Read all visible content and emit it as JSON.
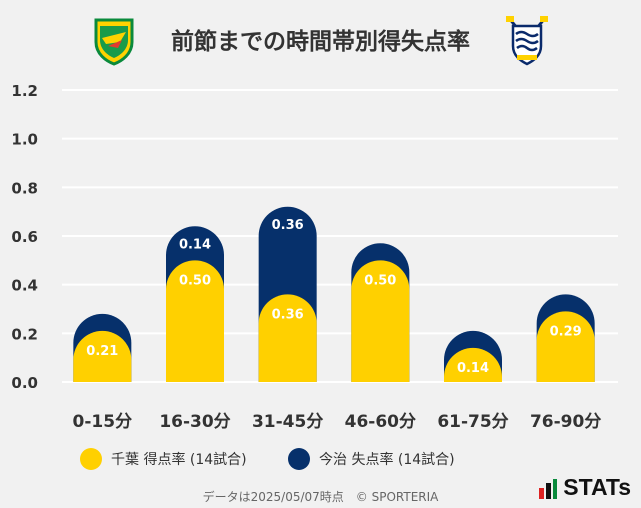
{
  "title": "前節までの時間帯別得失点率",
  "colors": {
    "home": "#ffd000",
    "away": "#06306b",
    "grid": "#ffffff",
    "text": "#333333"
  },
  "chart_data": {
    "type": "bar",
    "stacked": true,
    "categories": [
      "0-15分",
      "16-30分",
      "31-45分",
      "46-60分",
      "61-75分",
      "76-90分"
    ],
    "series": [
      {
        "name": "千葉 得点率 (14試合)",
        "values": [
          0.21,
          0.5,
          0.36,
          0.5,
          0.14,
          0.29
        ]
      },
      {
        "name": "今治 失点率 (14試合)",
        "values": [
          0.07,
          0.14,
          0.36,
          0.07,
          0.07,
          0.07
        ]
      }
    ],
    "data_labels": [
      [
        "0.21",
        "0.50",
        "0.36",
        "0.50",
        "0.14",
        "0.29"
      ],
      [
        "",
        "0.14",
        "0.36",
        "",
        "",
        ""
      ]
    ],
    "yticks": [
      "0.0",
      "0.2",
      "0.4",
      "0.6",
      "0.8",
      "1.0",
      "1.2"
    ],
    "ylim": [
      0,
      1.2
    ],
    "grid": true
  },
  "legend": {
    "home_label": "千葉 得点率 (14試合)",
    "away_label": "今治 失点率 (14試合)"
  },
  "footer": "データは2025/05/07時点　© SPORTERIA",
  "brand": "STATs",
  "logos": {
    "left": "jef-united-crest",
    "right": "fc-imabari-crest"
  }
}
